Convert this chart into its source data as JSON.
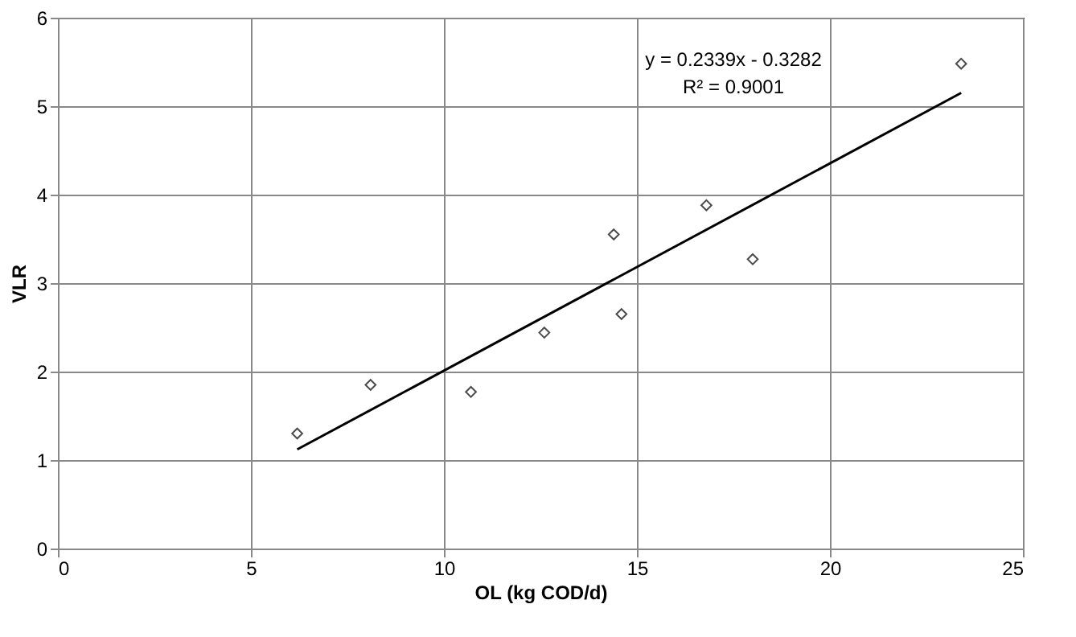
{
  "chart_data": {
    "type": "scatter",
    "xlabel": "OL (kg COD/d)",
    "ylabel": "VLR",
    "x": [
      6.2,
      8.1,
      10.7,
      12.6,
      14.4,
      14.6,
      16.8,
      18.0,
      23.4
    ],
    "series": [
      {
        "color": "#000000",
        "marker": "diamond",
        "values": [
          1.3,
          1.85,
          1.77,
          2.44,
          3.55,
          2.65,
          3.88,
          3.27,
          5.48
        ]
      },
      {
        "type": "line",
        "color": "#000000",
        "marker": "none",
        "line_style": "solid",
        "x": [
          6.2,
          23.4
        ],
        "values": [
          1.12,
          5.15
        ]
      }
    ],
    "annotations": [
      "y = 0.2339x - 0.3282",
      "R² = 0.9001"
    ],
    "xlim": [
      0,
      25
    ],
    "xticks": [
      0,
      5,
      10,
      15,
      20,
      25
    ],
    "ylim": [
      0,
      6
    ],
    "yticks": [
      0,
      1,
      2,
      3,
      4,
      5,
      6
    ],
    "grid": true
  }
}
